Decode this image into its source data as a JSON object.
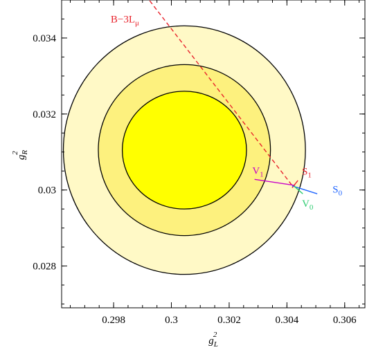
{
  "chart_data": {
    "type": "scatter",
    "title": "",
    "xlabel": "g_L^2",
    "ylabel": "g_R^2",
    "xlim": [
      0.2962,
      0.3067
    ],
    "ylim": [
      0.0269,
      0.035
    ],
    "x_ticks": [
      0.298,
      0.3,
      0.302,
      0.304,
      0.306
    ],
    "x_tick_labels": [
      "0.298",
      "0.3",
      "0.302",
      "0.304",
      "0.306"
    ],
    "y_ticks": [
      0.028,
      0.03,
      0.032,
      0.034
    ],
    "y_tick_labels": [
      "0.028",
      "0.03",
      "0.032",
      "0.034"
    ],
    "grid": false,
    "legend": "none",
    "confidence_regions": [
      {
        "level": 3,
        "center": [
          0.30045,
          0.03105
        ],
        "semi_axes": [
          0.00419,
          0.00327
        ],
        "fill": "#fff9c6"
      },
      {
        "level": 2,
        "center": [
          0.30045,
          0.03105
        ],
        "semi_axes": [
          0.00298,
          0.00225
        ],
        "fill": "#fdf17e"
      },
      {
        "level": 1,
        "center": [
          0.30045,
          0.03105
        ],
        "semi_axes": [
          0.00215,
          0.00155
        ],
        "fill": "#ffff00"
      }
    ],
    "lines": [
      {
        "label": "B−3Lμ",
        "label_base": "B−3L",
        "label_sub": "μ",
        "color": "#e8232c",
        "dash": true,
        "points": [
          [
            0.29925,
            0.03498
          ],
          [
            0.30422,
            0.03008
          ]
        ],
        "label_at": [
          0.2979,
          0.03441
        ]
      },
      {
        "label": "V1",
        "label_base": "V",
        "label_sub": "1",
        "color": "#c800c8",
        "dash": false,
        "points": [
          [
            0.30288,
            0.03028
          ],
          [
            0.30428,
            0.03012
          ]
        ],
        "label_at": [
          0.3028,
          0.03042
        ]
      },
      {
        "label": "S1",
        "label_base": "S",
        "label_sub": "1",
        "color": "#e8232c",
        "dash": false,
        "points": [
          [
            0.30418,
            0.03006
          ],
          [
            0.30438,
            0.03025
          ]
        ],
        "label_at": [
          0.30452,
          0.0304
        ]
      },
      {
        "label": "S0",
        "label_base": "S",
        "label_sub": "0",
        "color": "#1e64ff",
        "dash": false,
        "points": [
          [
            0.30418,
            0.03011
          ],
          [
            0.30505,
            0.0299
          ]
        ],
        "label_at": [
          0.30558,
          0.02993
        ]
      },
      {
        "label": "V0",
        "label_base": "V",
        "label_sub": "0",
        "color": "#2ecc71",
        "dash": false,
        "points": [
          [
            0.30425,
            0.0301
          ],
          [
            0.30455,
            0.0299
          ]
        ],
        "label_at": [
          0.30452,
          0.02956
        ]
      }
    ]
  }
}
